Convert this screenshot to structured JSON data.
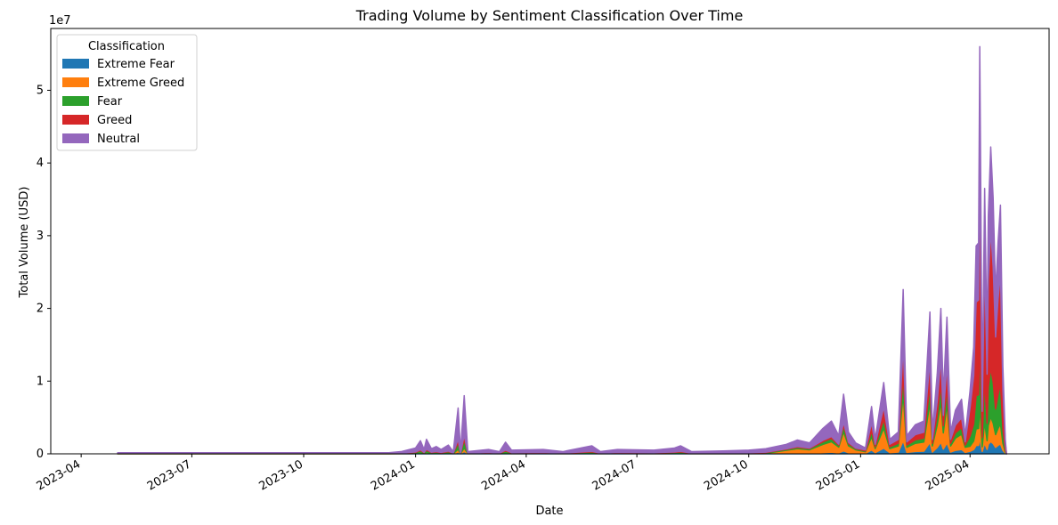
{
  "chart_data": {
    "type": "area",
    "title": "Trading Volume by Sentiment Classification Over Time",
    "xlabel": "Date",
    "ylabel": "Total Volume (USD)",
    "y_multiplier": "1e7",
    "y_ticks": [
      0,
      1,
      2,
      3,
      4,
      5
    ],
    "x_ticks": [
      "2023-04",
      "2023-07",
      "2023-10",
      "2024-01",
      "2024-04",
      "2024-07",
      "2024-10",
      "2025-01",
      "2025-04"
    ],
    "xlim": [
      "2023-03-07",
      "2025-06-05"
    ],
    "ylim": [
      0,
      58500000
    ],
    "legend": {
      "title": "Classification",
      "position": "upper-left"
    },
    "series": [
      {
        "name": "Extreme Fear",
        "color": "#1f77b4"
      },
      {
        "name": "Extreme Greed",
        "color": "#ff7f0e"
      },
      {
        "name": "Fear",
        "color": "#2ca02c"
      },
      {
        "name": "Greed",
        "color": "#d62728"
      },
      {
        "name": "Neutral",
        "color": "#9467bd"
      }
    ],
    "total_volume_points": [
      [
        "2023-05-01",
        150000
      ],
      [
        "2023-12-10",
        150000
      ],
      [
        "2023-12-20",
        300000
      ],
      [
        "2024-01-01",
        800000
      ],
      [
        "2024-01-05",
        1800000
      ],
      [
        "2024-01-08",
        600000
      ],
      [
        "2024-01-10",
        2000000
      ],
      [
        "2024-01-14",
        700000
      ],
      [
        "2024-01-18",
        1000000
      ],
      [
        "2024-01-22",
        600000
      ],
      [
        "2024-01-28",
        1200000
      ],
      [
        "2024-02-01",
        300000
      ],
      [
        "2024-02-05",
        6300000
      ],
      [
        "2024-02-07",
        300000
      ],
      [
        "2024-02-10",
        8000000
      ],
      [
        "2024-02-13",
        300000
      ],
      [
        "2024-03-01",
        600000
      ],
      [
        "2024-03-10",
        300000
      ],
      [
        "2024-03-15",
        1600000
      ],
      [
        "2024-03-20",
        500000
      ],
      [
        "2024-04-15",
        600000
      ],
      [
        "2024-05-01",
        300000
      ],
      [
        "2024-05-25",
        1100000
      ],
      [
        "2024-06-01",
        300000
      ],
      [
        "2024-06-15",
        600000
      ],
      [
        "2024-07-15",
        500000
      ],
      [
        "2024-08-01",
        800000
      ],
      [
        "2024-08-06",
        1100000
      ],
      [
        "2024-08-15",
        300000
      ],
      [
        "2024-09-10",
        400000
      ],
      [
        "2024-10-01",
        500000
      ],
      [
        "2024-10-15",
        700000
      ],
      [
        "2024-11-01",
        1300000
      ],
      [
        "2024-11-10",
        1900000
      ],
      [
        "2024-11-20",
        1500000
      ],
      [
        "2024-12-01",
        3500000
      ],
      [
        "2024-12-08",
        4500000
      ],
      [
        "2024-12-14",
        2500000
      ],
      [
        "2024-12-18",
        8200000
      ],
      [
        "2024-12-22",
        3000000
      ],
      [
        "2024-12-28",
        1500000
      ],
      [
        "2025-01-05",
        800000
      ],
      [
        "2025-01-10",
        6500000
      ],
      [
        "2025-01-13",
        2000000
      ],
      [
        "2025-01-20",
        9800000
      ],
      [
        "2025-01-25",
        2000000
      ],
      [
        "2025-02-01",
        3000000
      ],
      [
        "2025-02-05",
        22600000
      ],
      [
        "2025-02-08",
        2500000
      ],
      [
        "2025-02-15",
        4000000
      ],
      [
        "2025-02-22",
        4500000
      ],
      [
        "2025-02-27",
        19500000
      ],
      [
        "2025-03-01",
        3000000
      ],
      [
        "2025-03-05",
        11000000
      ],
      [
        "2025-03-08",
        20000000
      ],
      [
        "2025-03-10",
        8000000
      ],
      [
        "2025-03-13",
        18800000
      ],
      [
        "2025-03-16",
        3000000
      ],
      [
        "2025-03-20",
        6000000
      ],
      [
        "2025-03-25",
        7500000
      ],
      [
        "2025-03-28",
        2500000
      ],
      [
        "2025-04-01",
        8700000
      ],
      [
        "2025-04-04",
        14700000
      ],
      [
        "2025-04-06",
        28600000
      ],
      [
        "2025-04-08",
        29000000
      ],
      [
        "2025-04-09",
        56000000
      ],
      [
        "2025-04-11",
        8000000
      ],
      [
        "2025-04-13",
        36500000
      ],
      [
        "2025-04-15",
        15000000
      ],
      [
        "2025-04-16",
        32700000
      ],
      [
        "2025-04-18",
        42200000
      ],
      [
        "2025-04-20",
        35200000
      ],
      [
        "2025-04-22",
        22000000
      ],
      [
        "2025-04-24",
        29000000
      ],
      [
        "2025-04-26",
        34200000
      ],
      [
        "2025-04-28",
        12000000
      ],
      [
        "2025-04-30",
        2000000
      ],
      [
        "2025-05-01",
        0
      ]
    ]
  }
}
